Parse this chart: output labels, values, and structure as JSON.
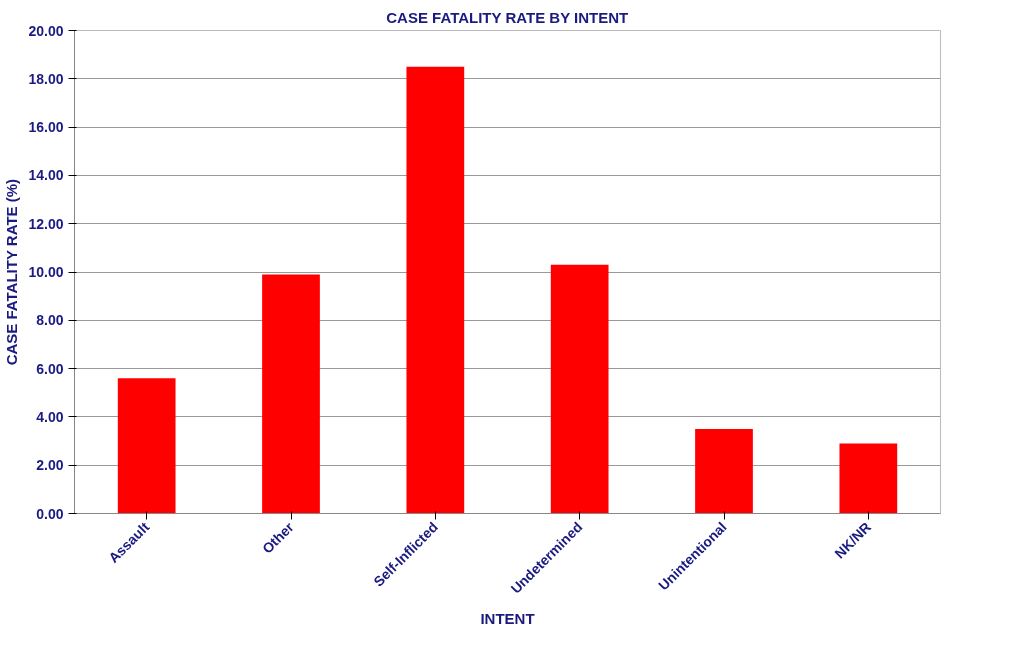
{
  "chart_data": {
    "type": "bar",
    "title": "CASE FATALITY RATE BY INTENT",
    "xlabel": "INTENT",
    "ylabel": "CASE FATALITY RATE (%)",
    "categories": [
      "Assault",
      "Other",
      "Self-Inflicted",
      "Undetermined",
      "Unintentional",
      "NK/NR"
    ],
    "values": [
      5.6,
      9.9,
      18.5,
      10.3,
      3.5,
      2.9
    ],
    "color": "#ff0000",
    "ylim": [
      0,
      20
    ],
    "yticks": [
      {
        "value": 0,
        "label": "0.00"
      },
      {
        "value": 2,
        "label": "2.00"
      },
      {
        "value": 4,
        "label": "4.00"
      },
      {
        "value": 6,
        "label": "6.00"
      },
      {
        "value": 8,
        "label": "8.00"
      },
      {
        "value": 10,
        "label": "10.00"
      },
      {
        "value": 12,
        "label": "12.00"
      },
      {
        "value": 14,
        "label": "14.00"
      },
      {
        "value": 16,
        "label": "16.00"
      },
      {
        "value": 18,
        "label": "18.00"
      },
      {
        "value": 20,
        "label": "20.00"
      }
    ],
    "grid": "y"
  }
}
